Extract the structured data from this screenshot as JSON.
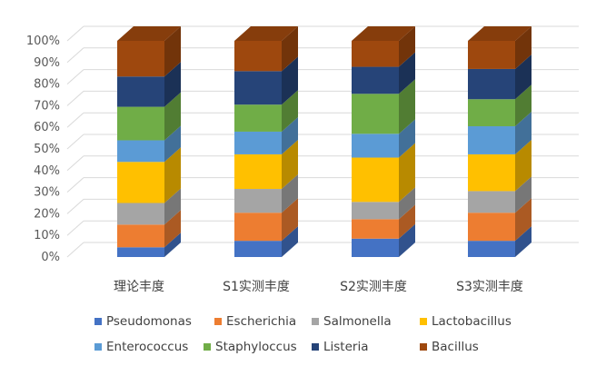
{
  "chart_data": {
    "type": "bar",
    "stacked": true,
    "percent": true,
    "three_d": true,
    "categories": [
      "理论丰度",
      "S1实测丰度",
      "S2实测丰度",
      "S3实测丰度"
    ],
    "y_ticks": [
      "0%",
      "10%",
      "20%",
      "30%",
      "40%",
      "50%",
      "60%",
      "70%",
      "80%",
      "90%",
      "100%"
    ],
    "ylim": [
      0,
      100
    ],
    "grid": true,
    "legend_position": "bottom",
    "series": [
      {
        "name": "Pseudomonas",
        "color": "#4472C4",
        "values": [
          4.5,
          7.5,
          8.5,
          7.5
        ]
      },
      {
        "name": "Escherichia",
        "color": "#ED7D31",
        "values": [
          10.5,
          13,
          9,
          13
        ]
      },
      {
        "name": "Salmonella",
        "color": "#A5A5A5",
        "values": [
          10,
          11,
          8,
          10
        ]
      },
      {
        "name": "Lactobacillus",
        "color": "#FFC000",
        "values": [
          19,
          16,
          20.5,
          17
        ]
      },
      {
        "name": "Enterococcus",
        "color": "#5B9BD5",
        "values": [
          10,
          10.5,
          11,
          13
        ]
      },
      {
        "name": "Staphyloccus",
        "color": "#70AD47",
        "values": [
          15.5,
          12.5,
          18.5,
          12.5
        ]
      },
      {
        "name": "Listeria",
        "color": "#264478",
        "values": [
          14,
          15.5,
          12.5,
          14
        ]
      },
      {
        "name": "Bacillus",
        "color": "#9E480E",
        "values": [
          16.5,
          14,
          12,
          13
        ]
      }
    ]
  }
}
